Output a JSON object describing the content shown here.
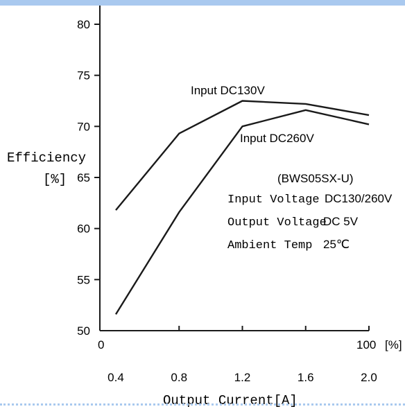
{
  "chart_data": {
    "type": "line",
    "xlabel": "Output Current[A]",
    "ylabel": "Efficiency",
    "ylabel_unit": "[%]",
    "x_ticks": [
      "0.4",
      "0.8",
      "1.2",
      "1.6",
      "2.0"
    ],
    "x_range": [
      0.4,
      2.0
    ],
    "secondary_x_ticks": [
      "0",
      "100"
    ],
    "secondary_x_unit": "[%]",
    "ylim": [
      50,
      80
    ],
    "y_ticks": [
      50,
      55,
      60,
      65,
      70,
      75,
      80
    ],
    "grid": false,
    "series": [
      {
        "name": "Input DC130V",
        "x": [
          0.4,
          0.8,
          1.2,
          1.6,
          2.0
        ],
        "y": [
          61.8,
          69.3,
          72.5,
          72.2,
          71.1
        ]
      },
      {
        "name": "Input DC260V",
        "x": [
          0.4,
          0.8,
          1.2,
          1.6,
          2.0
        ],
        "y": [
          51.6,
          61.6,
          70.0,
          71.6,
          70.2
        ]
      }
    ],
    "annotations": {
      "model": "(BWS05SX-U)",
      "specs": [
        {
          "label": "Input Voltage",
          "value": "DC130/260V"
        },
        {
          "label": "Output Voltage",
          "value": "DC 5V"
        },
        {
          "label": "Ambient Temp",
          "value": "25℃"
        }
      ]
    }
  },
  "colors": {
    "line": "#1a1a1a",
    "header_bar": "#a9c9ef"
  }
}
